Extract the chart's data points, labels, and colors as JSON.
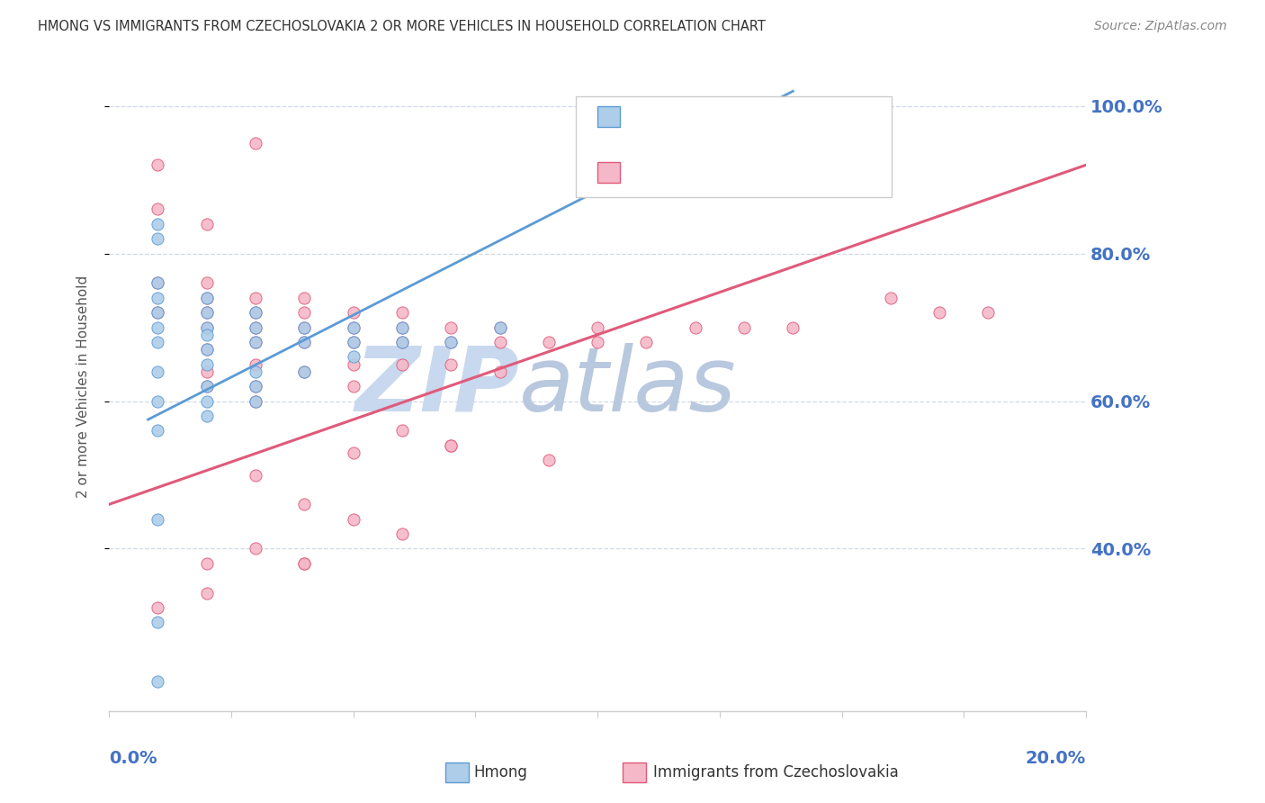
{
  "title": "HMONG VS IMMIGRANTS FROM CZECHOSLOVAKIA 2 OR MORE VEHICLES IN HOUSEHOLD CORRELATION CHART",
  "source": "Source: ZipAtlas.com",
  "ylabel": "2 or more Vehicles in Household",
  "blue_color": "#aecde8",
  "pink_color": "#f5b8c8",
  "trendline_blue": "#5b9bd5",
  "trendline_pink": "#e05a7a",
  "blue_scatter_x": [
    0.001,
    0.001,
    0.001,
    0.001,
    0.001,
    0.001,
    0.001,
    0.001,
    0.001,
    0.001,
    0.002,
    0.002,
    0.002,
    0.002,
    0.002,
    0.002,
    0.002,
    0.002,
    0.002,
    0.003,
    0.003,
    0.003,
    0.003,
    0.003,
    0.003,
    0.004,
    0.004,
    0.004,
    0.005,
    0.005,
    0.005,
    0.006,
    0.006,
    0.007,
    0.008,
    0.001,
    0.001,
    0.001
  ],
  "blue_scatter_y": [
    0.82,
    0.84,
    0.76,
    0.74,
    0.72,
    0.7,
    0.68,
    0.64,
    0.6,
    0.56,
    0.74,
    0.72,
    0.7,
    0.69,
    0.67,
    0.65,
    0.62,
    0.6,
    0.58,
    0.72,
    0.7,
    0.68,
    0.64,
    0.62,
    0.6,
    0.7,
    0.68,
    0.64,
    0.7,
    0.68,
    0.66,
    0.7,
    0.68,
    0.68,
    0.7,
    0.44,
    0.3,
    0.22
  ],
  "pink_scatter_x": [
    0.001,
    0.001,
    0.001,
    0.001,
    0.002,
    0.002,
    0.002,
    0.002,
    0.002,
    0.002,
    0.002,
    0.003,
    0.003,
    0.003,
    0.003,
    0.003,
    0.003,
    0.003,
    0.004,
    0.004,
    0.004,
    0.004,
    0.004,
    0.005,
    0.005,
    0.005,
    0.005,
    0.005,
    0.006,
    0.006,
    0.006,
    0.006,
    0.007,
    0.007,
    0.007,
    0.008,
    0.008,
    0.008,
    0.009,
    0.01,
    0.01,
    0.011,
    0.012,
    0.013,
    0.014,
    0.016,
    0.017,
    0.018,
    0.003,
    0.004,
    0.005,
    0.006,
    0.007,
    0.002,
    0.003,
    0.004,
    0.005,
    0.006,
    0.007,
    0.001,
    0.002,
    0.003,
    0.004,
    0.009,
    0.002
  ],
  "pink_scatter_y": [
    0.86,
    0.76,
    0.72,
    0.32,
    0.76,
    0.74,
    0.72,
    0.7,
    0.67,
    0.64,
    0.62,
    0.74,
    0.72,
    0.7,
    0.68,
    0.65,
    0.62,
    0.6,
    0.74,
    0.72,
    0.7,
    0.68,
    0.64,
    0.72,
    0.7,
    0.68,
    0.65,
    0.62,
    0.72,
    0.7,
    0.68,
    0.65,
    0.7,
    0.68,
    0.65,
    0.7,
    0.68,
    0.64,
    0.68,
    0.7,
    0.68,
    0.68,
    0.7,
    0.7,
    0.7,
    0.74,
    0.72,
    0.72,
    0.5,
    0.46,
    0.44,
    0.42,
    0.54,
    0.38,
    0.4,
    0.38,
    0.53,
    0.56,
    0.54,
    0.92,
    0.34,
    0.95,
    0.38,
    0.52,
    0.84
  ],
  "blue_trend_x": [
    0.0008,
    0.014
  ],
  "blue_trend_y": [
    0.575,
    1.02
  ],
  "pink_trend_x": [
    0.0,
    0.02
  ],
  "pink_trend_y": [
    0.46,
    0.92
  ],
  "xlim": [
    0.0,
    0.02
  ],
  "ylim": [
    0.18,
    1.06
  ],
  "ytick_vals": [
    0.4,
    0.6,
    0.8,
    1.0
  ],
  "ytick_labels": [
    "40.0%",
    "60.0%",
    "80.0%",
    "100.0%"
  ],
  "watermark_zip": "ZIP",
  "watermark_atlas": "atlas",
  "watermark_color_zip": "#c8d8ee",
  "watermark_color_atlas": "#b8c8de",
  "background_color": "#ffffff",
  "grid_color": "#d0d8e8",
  "axis_color": "#cccccc",
  "title_color": "#333333",
  "source_color": "#888888",
  "ylabel_color": "#555555",
  "tick_label_color": "#4472c4",
  "legend_border_color": "#cccccc"
}
